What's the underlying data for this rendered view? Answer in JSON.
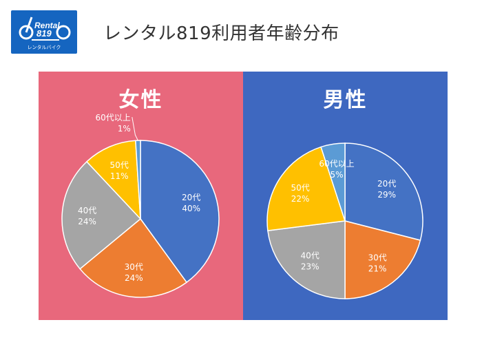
{
  "page": {
    "title": "レンタル819利用者年齢分布",
    "logo": {
      "brand": "Rental 819",
      "sub": "レンタルバイク",
      "color": "#1565c0"
    }
  },
  "colors": {
    "female_bg": "#e8687c",
    "male_bg": "#3e68c0",
    "slice_20s": "#4472c4",
    "slice_30s": "#ed7d31",
    "slice_40s": "#a5a5a5",
    "slice_50s": "#ffc000",
    "slice_60s": "#5b9bd5"
  },
  "chart_data": [
    {
      "type": "pie",
      "title": "女性",
      "categories": [
        "20代",
        "30代",
        "40代",
        "50代",
        "60代以上"
      ],
      "values": [
        40,
        24,
        24,
        11,
        1
      ],
      "labels": [
        "40%",
        "24%",
        "24%",
        "11%",
        "1%"
      ]
    },
    {
      "type": "pie",
      "title": "男性",
      "categories": [
        "20代",
        "30代",
        "40代",
        "50代",
        "60代以上"
      ],
      "values": [
        29,
        21,
        23,
        22,
        5
      ],
      "labels": [
        "29%",
        "21%",
        "23%",
        "22%",
        "5%"
      ]
    }
  ]
}
